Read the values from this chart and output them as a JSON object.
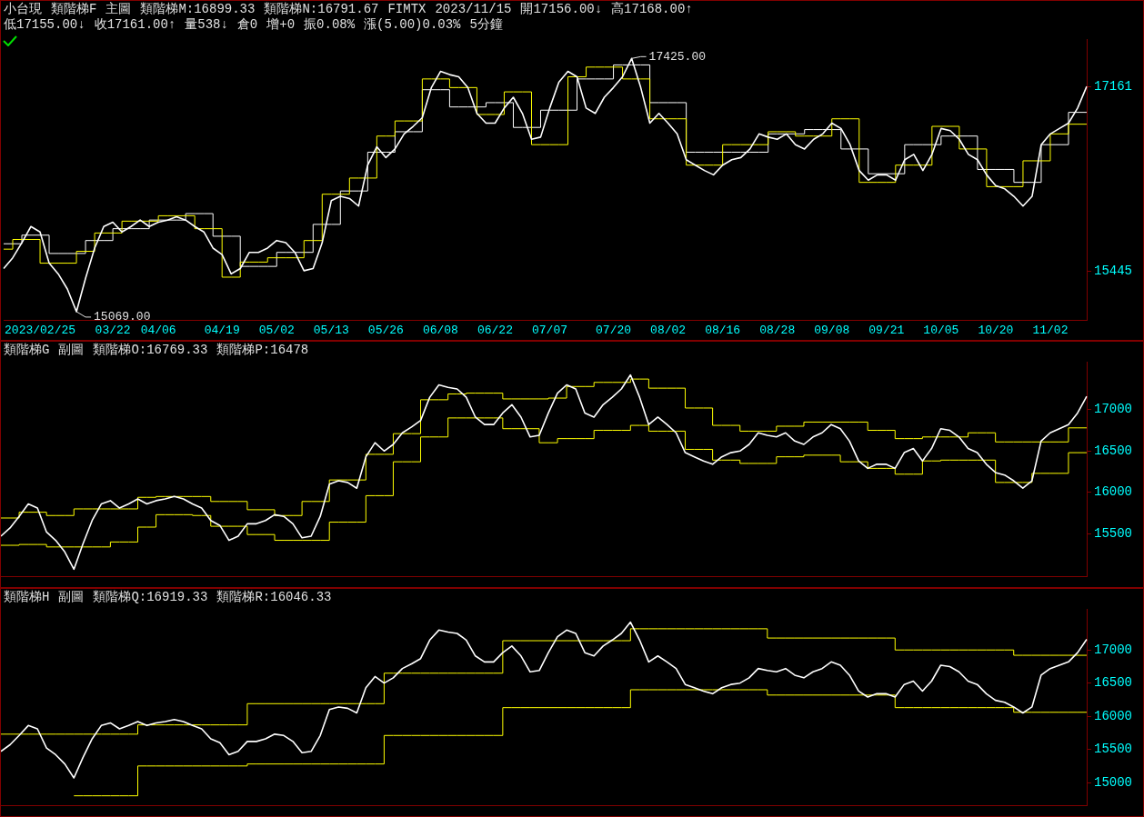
{
  "chart_data": [
    {
      "type": "line",
      "ylim": [
        14990,
        17600
      ],
      "yticks": [
        15445,
        17161
      ],
      "marker": "none",
      "line_style": "solid",
      "categories": [
        null,
        null,
        null,
        null,
        "2023/02/25",
        null,
        null,
        null,
        null,
        null,
        null,
        null,
        "03/22",
        null,
        null,
        null,
        null,
        "04/06",
        null,
        null,
        null,
        null,
        null,
        null,
        "04/19",
        null,
        null,
        null,
        null,
        null,
        "05/02",
        null,
        null,
        null,
        null,
        null,
        "05/13",
        null,
        null,
        null,
        null,
        null,
        "05/26",
        null,
        null,
        null,
        null,
        null,
        "06/08",
        null,
        null,
        null,
        null,
        null,
        "06/22",
        null,
        null,
        null,
        null,
        null,
        "07/07",
        null,
        null,
        null,
        null,
        null,
        null,
        "07/20",
        null,
        null,
        null,
        null,
        null,
        "08/02",
        null,
        null,
        null,
        null,
        null,
        "08/16",
        null,
        null,
        null,
        null,
        null,
        "08/28",
        null,
        null,
        null,
        null,
        null,
        "09/08",
        null,
        null,
        null,
        null,
        null,
        "09/21",
        null,
        null,
        null,
        null,
        null,
        "10/05",
        null,
        null,
        null,
        null,
        null,
        "10/20",
        null,
        null,
        null,
        null,
        null,
        "11/02",
        null,
        null,
        null,
        null
      ],
      "series": [
        {
          "type": "line",
          "color": "#ffffff",
          "values": [
            15470,
            15570,
            15710,
            15860,
            15810,
            15520,
            15420,
            15280,
            15070,
            15380,
            15660,
            15860,
            15900,
            15810,
            15860,
            15920,
            15860,
            15900,
            15920,
            15950,
            15920,
            15860,
            15810,
            15660,
            15600,
            15420,
            15470,
            15620,
            15620,
            15660,
            15730,
            15710,
            15620,
            15450,
            15470,
            15710,
            16100,
            16140,
            16120,
            16050,
            16430,
            16600,
            16500,
            16580,
            16720,
            16790,
            16870,
            17150,
            17300,
            17270,
            17250,
            17150,
            16910,
            16820,
            16820,
            16960,
            17060,
            16910,
            16670,
            16690,
            16960,
            17200,
            17300,
            17250,
            16960,
            16910,
            17060,
            17150,
            17250,
            17420,
            17150,
            16820,
            16910,
            16820,
            16720,
            16480,
            16430,
            16380,
            16340,
            16430,
            16480,
            16500,
            16580,
            16720,
            16690,
            16670,
            16720,
            16620,
            16580,
            16670,
            16720,
            16820,
            16770,
            16620,
            16380,
            16290,
            16340,
            16340,
            16290,
            16480,
            16530,
            16380,
            16530,
            16770,
            16750,
            16670,
            16530,
            16480,
            16340,
            16240,
            16210,
            16140,
            16050,
            16140,
            16620,
            16720,
            16770,
            16820,
            16960,
            17160
          ]
        },
        {
          "type": "step",
          "color": "#ffff00",
          "values": [
            15650,
            15650,
            15740,
            15740,
            15740,
            15520,
            15520,
            15520,
            15520,
            15630,
            15630,
            15800,
            15800,
            15800,
            15910,
            15910,
            15910,
            15910,
            15960,
            15960,
            15960,
            15960,
            15840,
            15840,
            15840,
            15390,
            15390,
            15530,
            15530,
            15530,
            15570,
            15570,
            15570,
            15570,
            15730,
            15730,
            16160,
            16160,
            16160,
            16310,
            16310,
            16310,
            16700,
            16700,
            16840,
            16840,
            16840,
            17230,
            17230,
            17230,
            17150,
            17150,
            17150,
            16900,
            16900,
            16900,
            17110,
            17110,
            17110,
            16620,
            16620,
            16620,
            16620,
            17250,
            17250,
            17340,
            17340,
            17340,
            17340,
            17230,
            17230,
            17230,
            16860,
            16860,
            16860,
            16860,
            16430,
            16430,
            16430,
            16430,
            16620,
            16620,
            16620,
            16620,
            16620,
            16740,
            16740,
            16740,
            16700,
            16700,
            16700,
            16700,
            16860,
            16860,
            16860,
            16270,
            16270,
            16270,
            16270,
            16430,
            16430,
            16430,
            16430,
            16790,
            16790,
            16790,
            16580,
            16580,
            16580,
            16230,
            16230,
            16230,
            16230,
            16470,
            16470,
            16470,
            16720,
            16720,
            16810,
            16810
          ]
        },
        {
          "type": "step",
          "color": "#ffffff",
          "values": [
            15700,
            15700,
            15700,
            15780,
            15780,
            15780,
            15610,
            15610,
            15610,
            15610,
            15730,
            15730,
            15730,
            15840,
            15840,
            15840,
            15840,
            15920,
            15920,
            15920,
            15920,
            15980,
            15980,
            15980,
            15770,
            15770,
            15770,
            15490,
            15490,
            15490,
            15490,
            15620,
            15620,
            15620,
            15620,
            15880,
            15880,
            15880,
            16190,
            16190,
            16190,
            16550,
            16550,
            16550,
            16740,
            16740,
            16740,
            17130,
            17130,
            17130,
            16970,
            16970,
            16970,
            16970,
            17010,
            17010,
            17010,
            16780,
            16780,
            16780,
            16940,
            16940,
            16940,
            16940,
            17230,
            17230,
            17230,
            17230,
            17360,
            17360,
            17360,
            17360,
            17010,
            17010,
            17010,
            17010,
            16550,
            16550,
            16550,
            16550,
            16550,
            16550,
            16550,
            16550,
            16550,
            16720,
            16720,
            16720,
            16720,
            16760,
            16760,
            16760,
            16760,
            16580,
            16580,
            16580,
            16350,
            16350,
            16350,
            16350,
            16620,
            16620,
            16620,
            16620,
            16700,
            16700,
            16700,
            16700,
            16390,
            16390,
            16390,
            16390,
            16270,
            16270,
            16270,
            16620,
            16620,
            16620,
            16920,
            16920
          ]
        }
      ],
      "annotations": [
        "小台現",
        "類階梯F",
        "主圖",
        "類階梯M:16899.33",
        "類階梯N:16791.67",
        "FIMTX",
        "2023/11/15",
        "開17156.00↓",
        "高17168.00↑",
        "低17155.00↓",
        "收17161.00↑",
        "量538↓",
        "倉0",
        "增+0",
        "振0.08%",
        "漲(5.00)0.03%",
        "5分鐘",
        "17425.00",
        "15069.00"
      ]
    },
    {
      "type": "line",
      "ylim": [
        14980,
        17580
      ],
      "yticks": [
        15500,
        16000,
        16500,
        17000
      ],
      "tick_labels": "y",
      "marker": "none",
      "line_style": "solid",
      "categories": [
        null,
        null,
        null,
        null,
        null,
        null,
        null,
        null,
        null,
        null,
        null,
        null,
        null,
        null,
        null,
        null,
        null,
        null,
        null,
        null,
        null,
        null,
        null,
        null,
        null,
        null,
        null,
        null,
        null,
        null,
        null,
        null,
        null,
        null,
        null,
        null,
        null,
        null,
        null,
        null,
        null,
        null,
        null,
        null,
        null,
        null,
        null,
        null,
        null,
        null,
        null,
        null,
        null,
        null,
        null,
        null,
        null,
        null,
        null,
        null,
        null,
        null,
        null,
        null,
        null,
        null,
        null,
        null,
        null,
        null,
        null,
        null,
        null,
        null,
        null,
        null,
        null,
        null,
        null,
        null,
        null,
        null,
        null,
        null,
        null,
        null,
        null,
        null,
        null,
        null,
        null,
        null,
        null,
        null,
        null,
        null,
        null,
        null,
        null,
        null,
        null,
        null,
        null,
        null,
        null,
        null,
        null,
        null,
        null,
        null,
        null,
        null,
        null,
        null,
        null,
        null,
        null,
        null,
        null,
        null
      ],
      "series": [
        {
          "type": "line",
          "color": "#ffffff",
          "values": [
            15470,
            15570,
            15710,
            15860,
            15810,
            15520,
            15420,
            15280,
            15070,
            15380,
            15660,
            15860,
            15900,
            15810,
            15860,
            15920,
            15860,
            15900,
            15920,
            15950,
            15920,
            15860,
            15810,
            15660,
            15600,
            15420,
            15470,
            15620,
            15620,
            15660,
            15730,
            15710,
            15620,
            15450,
            15470,
            15710,
            16100,
            16140,
            16120,
            16050,
            16430,
            16600,
            16500,
            16580,
            16720,
            16790,
            16870,
            17150,
            17300,
            17270,
            17250,
            17150,
            16910,
            16820,
            16820,
            16960,
            17060,
            16910,
            16670,
            16690,
            16960,
            17200,
            17300,
            17250,
            16960,
            16910,
            17060,
            17150,
            17250,
            17420,
            17150,
            16820,
            16910,
            16820,
            16720,
            16480,
            16430,
            16380,
            16340,
            16430,
            16480,
            16500,
            16580,
            16720,
            16690,
            16670,
            16720,
            16620,
            16580,
            16670,
            16720,
            16820,
            16770,
            16620,
            16380,
            16290,
            16340,
            16340,
            16290,
            16480,
            16530,
            16380,
            16530,
            16770,
            16750,
            16670,
            16530,
            16480,
            16340,
            16240,
            16210,
            16140,
            16050,
            16140,
            16620,
            16720,
            16770,
            16820,
            16960,
            17160
          ]
        },
        {
          "type": "step",
          "color": "#ffff00",
          "values": [
            15690,
            15690,
            15690,
            15760,
            15760,
            15760,
            15720,
            15720,
            15720,
            15800,
            15800,
            15800,
            15800,
            15800,
            15800,
            15800,
            15940,
            15940,
            15950,
            15950,
            15950,
            15950,
            15950,
            15950,
            15890,
            15890,
            15890,
            15890,
            15790,
            15790,
            15790,
            15720,
            15720,
            15720,
            15890,
            15890,
            15890,
            16150,
            16150,
            16150,
            16150,
            16460,
            16460,
            16460,
            16710,
            16710,
            16710,
            17120,
            17120,
            17120,
            17190,
            17190,
            17200,
            17200,
            17200,
            17200,
            17130,
            17130,
            17130,
            17130,
            17130,
            17140,
            17140,
            17280,
            17280,
            17280,
            17330,
            17330,
            17330,
            17330,
            17370,
            17370,
            17260,
            17260,
            17260,
            17260,
            17020,
            17020,
            17020,
            16810,
            16810,
            16810,
            16740,
            16740,
            16740,
            16740,
            16800,
            16800,
            16800,
            16850,
            16850,
            16850,
            16850,
            16850,
            16850,
            16850,
            16750,
            16750,
            16750,
            16650,
            16650,
            16650,
            16670,
            16670,
            16670,
            16670,
            16670,
            16720,
            16720,
            16720,
            16610,
            16610,
            16610,
            16610,
            16610,
            16610,
            16610,
            16610,
            16780,
            16780
          ]
        },
        {
          "type": "step",
          "color": "#ffff00",
          "values": [
            15360,
            15360,
            15360,
            15370,
            15370,
            15370,
            15340,
            15340,
            15340,
            15340,
            15340,
            15340,
            15340,
            15400,
            15400,
            15400,
            15580,
            15580,
            15730,
            15730,
            15730,
            15730,
            15720,
            15720,
            15590,
            15590,
            15590,
            15590,
            15490,
            15490,
            15490,
            15420,
            15420,
            15420,
            15420,
            15420,
            15420,
            15640,
            15640,
            15640,
            15640,
            15960,
            15960,
            15960,
            16370,
            16370,
            16370,
            16670,
            16670,
            16670,
            16900,
            16900,
            16900,
            16900,
            16900,
            16900,
            16770,
            16770,
            16770,
            16770,
            16600,
            16600,
            16650,
            16650,
            16650,
            16650,
            16750,
            16750,
            16750,
            16750,
            16810,
            16810,
            16740,
            16740,
            16740,
            16740,
            16520,
            16520,
            16520,
            16390,
            16390,
            16390,
            16350,
            16350,
            16350,
            16350,
            16430,
            16430,
            16430,
            16450,
            16450,
            16450,
            16450,
            16370,
            16370,
            16370,
            16290,
            16290,
            16290,
            16220,
            16220,
            16220,
            16380,
            16380,
            16390,
            16390,
            16390,
            16390,
            16390,
            16390,
            16120,
            16120,
            16120,
            16120,
            16230,
            16230,
            16230,
            16230,
            16480,
            16480
          ]
        }
      ],
      "annotations": [
        "類階梯G",
        "副圖",
        "類階梯O:16769.33",
        "類階梯P:16478"
      ]
    },
    {
      "type": "line",
      "ylim": [
        14650,
        17620
      ],
      "yticks": [
        15000,
        15500,
        16000,
        16500,
        17000
      ],
      "tick_labels": "y",
      "marker": "none",
      "line_style": "solid",
      "categories": [
        null,
        null,
        null,
        null,
        null,
        null,
        null,
        null,
        null,
        null,
        null,
        null,
        null,
        null,
        null,
        null,
        null,
        null,
        null,
        null,
        null,
        null,
        null,
        null,
        null,
        null,
        null,
        null,
        null,
        null,
        null,
        null,
        null,
        null,
        null,
        null,
        null,
        null,
        null,
        null,
        null,
        null,
        null,
        null,
        null,
        null,
        null,
        null,
        null,
        null,
        null,
        null,
        null,
        null,
        null,
        null,
        null,
        null,
        null,
        null,
        null,
        null,
        null,
        null,
        null,
        null,
        null,
        null,
        null,
        null,
        null,
        null,
        null,
        null,
        null,
        null,
        null,
        null,
        null,
        null,
        null,
        null,
        null,
        null,
        null,
        null,
        null,
        null,
        null,
        null,
        null,
        null,
        null,
        null,
        null,
        null,
        null,
        null,
        null,
        null,
        null,
        null,
        null,
        null,
        null,
        null,
        null,
        null,
        null,
        null,
        null,
        null,
        null,
        null,
        null,
        null,
        null,
        null,
        null,
        null
      ],
      "series": [
        {
          "type": "line",
          "color": "#ffffff",
          "values": [
            15470,
            15570,
            15710,
            15860,
            15810,
            15520,
            15420,
            15280,
            15070,
            15380,
            15660,
            15860,
            15900,
            15810,
            15860,
            15920,
            15860,
            15900,
            15920,
            15950,
            15920,
            15860,
            15810,
            15660,
            15600,
            15420,
            15470,
            15620,
            15620,
            15660,
            15730,
            15710,
            15620,
            15450,
            15470,
            15710,
            16100,
            16140,
            16120,
            16050,
            16430,
            16600,
            16500,
            16580,
            16720,
            16790,
            16870,
            17150,
            17300,
            17270,
            17250,
            17150,
            16910,
            16820,
            16820,
            16960,
            17060,
            16910,
            16670,
            16690,
            16960,
            17200,
            17300,
            17250,
            16960,
            16910,
            17060,
            17150,
            17250,
            17420,
            17150,
            16820,
            16910,
            16820,
            16720,
            16480,
            16430,
            16380,
            16340,
            16430,
            16480,
            16500,
            16580,
            16720,
            16690,
            16670,
            16720,
            16620,
            16580,
            16670,
            16720,
            16820,
            16770,
            16620,
            16380,
            16290,
            16340,
            16340,
            16290,
            16480,
            16530,
            16380,
            16530,
            16770,
            16750,
            16670,
            16530,
            16480,
            16340,
            16240,
            16210,
            16140,
            16050,
            16140,
            16620,
            16720,
            16770,
            16820,
            16960,
            17160
          ]
        },
        {
          "type": "step",
          "color": "#ffff00",
          "values": [
            15730,
            15730,
            15730,
            15730,
            15730,
            15730,
            15730,
            15730,
            15730,
            15730,
            15730,
            15730,
            15730,
            15730,
            15730,
            15730,
            15870,
            15870,
            15870,
            15870,
            15870,
            15870,
            15870,
            15870,
            15870,
            15870,
            15870,
            15870,
            16190,
            16190,
            16190,
            16190,
            16190,
            16190,
            16190,
            16190,
            16190,
            16190,
            16190,
            16190,
            16190,
            16190,
            16190,
            16650,
            16650,
            16650,
            16650,
            16650,
            16650,
            16650,
            16650,
            16650,
            16650,
            16650,
            16650,
            16650,
            17140,
            17140,
            17140,
            17140,
            17140,
            17140,
            17140,
            17140,
            17140,
            17140,
            17140,
            17140,
            17140,
            17140,
            17320,
            17320,
            17320,
            17320,
            17320,
            17320,
            17320,
            17320,
            17320,
            17320,
            17320,
            17320,
            17320,
            17320,
            17320,
            17180,
            17180,
            17180,
            17180,
            17180,
            17180,
            17180,
            17180,
            17180,
            17180,
            17180,
            17180,
            17180,
            17180,
            17000,
            17000,
            17000,
            17000,
            17000,
            17000,
            17000,
            17000,
            17000,
            17000,
            17000,
            17000,
            17000,
            16920,
            16920,
            16920,
            16920,
            16920,
            16920,
            16920,
            16920
          ]
        },
        {
          "type": "step",
          "color": "#ffff00",
          "values": [
            null,
            null,
            null,
            null,
            null,
            null,
            null,
            null,
            14800,
            14800,
            14800,
            14800,
            14800,
            14800,
            14800,
            14800,
            15250,
            15250,
            15250,
            15250,
            15250,
            15250,
            15250,
            15250,
            15250,
            15250,
            15250,
            15250,
            15280,
            15280,
            15280,
            15280,
            15280,
            15280,
            15280,
            15280,
            15280,
            15280,
            15280,
            15280,
            15280,
            15280,
            15280,
            15710,
            15710,
            15710,
            15710,
            15710,
            15710,
            15710,
            15710,
            15710,
            15710,
            15710,
            15710,
            15710,
            16130,
            16130,
            16130,
            16130,
            16130,
            16130,
            16130,
            16130,
            16130,
            16130,
            16130,
            16130,
            16130,
            16130,
            16400,
            16400,
            16400,
            16400,
            16400,
            16400,
            16400,
            16400,
            16400,
            16400,
            16400,
            16400,
            16400,
            16400,
            16400,
            16320,
            16320,
            16320,
            16320,
            16320,
            16320,
            16320,
            16320,
            16320,
            16320,
            16320,
            16320,
            16320,
            16320,
            16130,
            16130,
            16130,
            16130,
            16130,
            16130,
            16130,
            16130,
            16130,
            16130,
            16130,
            16130,
            16130,
            16060,
            16060,
            16060,
            16060,
            16060,
            16060,
            16060,
            16060
          ]
        }
      ],
      "annotations": [
        "類階梯H",
        "副圖",
        "類階梯Q:16919.33",
        "類階梯R:16046.33"
      ]
    }
  ]
}
